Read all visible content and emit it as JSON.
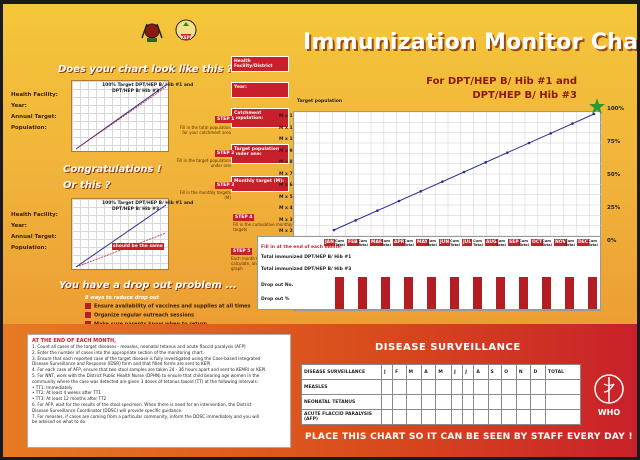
{
  "title": "Immunization Monitor Chart",
  "subtitle_line1": "For DPT/HEP B/ Hib #1 and",
  "subtitle_line2": "DPT/HEP B/ Hib #3",
  "left": {
    "q1": "Does your chart look like this ?",
    "congrats": "Congratulations !",
    "q2": "Or this ?",
    "dropout_title": "You have a drop out problem ...",
    "dropout_sub": "8 ways to reduce drop out",
    "tips": [
      "Ensure availability of vaccines and supplies at all times",
      "Organize regular outreach sessions",
      "Make sure parents know when to return"
    ],
    "fields": [
      "Health Facility:",
      "Year:",
      "Annual Target:",
      "Population:"
    ],
    "mini_legend1": "100% Target DPT/HEP B/ Hib #1 and",
    "mini_legend2": "DPT/HEP B/ Hib #3",
    "should_be": "should be the same"
  },
  "steps": {
    "header": "Health Facility/District",
    "year": "Year:",
    "catchment": "Catchment population:",
    "target_pop": "Target population under one:",
    "monthly": "Monthly target (M):",
    "step1": "STEP 1",
    "step1_note": "Fill in the total population for your catchment area",
    "step2": "STEP 2",
    "step2_note": "Fill in the target population under one",
    "step3": "STEP 3",
    "step3_note": "Fill in the monthly targets (M)",
    "step4": "STEP 4",
    "step4_note": "Fill in the cumulative monthly targets",
    "step5": "STEP 5",
    "step5_note": "Each month fill in, calculate, and plot on graph",
    "fill_end": "Fill in at the end of each month",
    "total1": "Total immunized DPT/HEP B/ Hib #1",
    "total3": "Total immunized DPT/HEP B/ Hib #3",
    "drop_no": "Drop out No.",
    "drop_pct": "Drop out %",
    "target_pop_label": "Target population"
  },
  "m_labels": [
    "M x 12 =",
    "M x 11 =",
    "M x 10 =",
    "M x 9 =",
    "M x 8 =",
    "M x 7 =",
    "M x 6 =",
    "M x 5 =",
    "M x 4 =",
    "M x 3 =",
    "M x 2 =",
    "M x 1 ="
  ],
  "pct_labels": [
    "100%",
    "75%",
    "50%",
    "25%",
    "0%"
  ],
  "months": [
    "JAN",
    "FEB",
    "MAR",
    "APR",
    "MAY",
    "JUN",
    "JUL",
    "AUG",
    "SEP",
    "OCT",
    "NOV",
    "DEC"
  ],
  "cum_label": "Cum Total",
  "instructions": {
    "head": "AT THE END OF EACH MONTH,",
    "lines": [
      "1.   Count all cases of the target diseases - measles, neonatal tetanus and acute flaccid paralysis (AFP)",
      "2.   Enter the number of cases into the appropriate section of the monitoring chart.",
      "3.   Ensure that each reported case of the target disease is fully investigated using the Case-based Integrated",
      "      Disease Surveillance and Response (IDSR) form and that filled forms are sent to KEPI.",
      "4.   For each case of AFP, ensure that two stool samples are taken 24 - 36 hours apart and sent to KEMRI or KEPI.",
      "5.   For NNT, work with the District Public Health Nurse (DPHN) to ensure that child bearing age women in the",
      "      community where the case was detected are given 3 doses of tetanus toxoid (TT) at the following intervals:",
      "      •  TT1:     Immediately",
      "      •  TT2:     At least 4 weeks after TT1",
      "      •  TT3:     At least 12 months after TT2",
      "6.   For AFP, wait for the results of the stool specimen. When there is need for an intervention, the District",
      "      Disease Surveillance Coordinator (DDSC) will provide specific guidance.",
      "7.   For measles, if cases are coming from a particular community, inform the DDSC immediately and you will",
      "      be advised on what to do."
    ]
  },
  "surveillance": {
    "title": "DISEASE SURVEILLANCE",
    "header": [
      "DISEASE SURVEILLANCE",
      "J",
      "F",
      "M",
      "A",
      "M",
      "J",
      "J",
      "A",
      "S",
      "O",
      "N",
      "D",
      "TOTAL"
    ],
    "rows": [
      "MEASLES",
      "NEONATAL TETANUS",
      "ACUTE FLACCID PARALYSIS (AFP)"
    ]
  },
  "footer": "PLACE THIS CHART SO IT CAN BE SEEN BY STAFF EVERY DAY !",
  "who": "WHO",
  "kepi": "KEPI",
  "colors": {
    "red": "#c8202a",
    "orange": "#e98a2c",
    "yellow": "#f4c63a",
    "line": "#2b2f8f"
  }
}
